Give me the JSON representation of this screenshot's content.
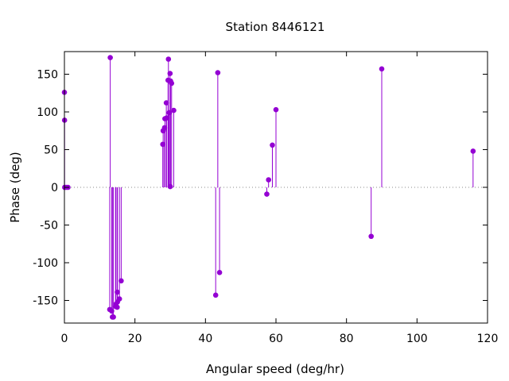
{
  "chart_data": {
    "type": "scatter",
    "style": "impulses with point markers (stem plot)",
    "title": "Station 8446121",
    "xlabel": "Angular speed (deg/hr)",
    "ylabel": "Phase (deg)",
    "xlim": [
      0,
      120
    ],
    "ylim": [
      -180,
      180
    ],
    "xticks": [
      0,
      20,
      40,
      60,
      80,
      100,
      120
    ],
    "yticks": [
      -150,
      -100,
      -50,
      0,
      50,
      100,
      150
    ],
    "zero_line": "dotted",
    "grid": false,
    "legend": "none",
    "color": "#9400d3",
    "series": [
      {
        "points": [
          [
            0.0,
            126
          ],
          [
            0.04,
            89
          ],
          [
            0.08,
            0
          ],
          [
            0.5,
            0
          ],
          [
            1.0,
            0
          ],
          [
            12.85,
            -162
          ],
          [
            13.4,
            -164
          ],
          [
            13.0,
            172
          ],
          [
            13.6,
            -172
          ],
          [
            13.9,
            -172
          ],
          [
            14.5,
            -158
          ],
          [
            14.6,
            -155
          ],
          [
            14.96,
            -159
          ],
          [
            15.0,
            -139
          ],
          [
            15.04,
            -152
          ],
          [
            15.6,
            -148
          ],
          [
            16.1,
            -124
          ],
          [
            27.9,
            57
          ],
          [
            28.0,
            75
          ],
          [
            28.4,
            79
          ],
          [
            28.5,
            91
          ],
          [
            28.9,
            112
          ],
          [
            29.0,
            92
          ],
          [
            29.4,
            142
          ],
          [
            29.5,
            170
          ],
          [
            29.7,
            99
          ],
          [
            29.96,
            151
          ],
          [
            30.0,
            1
          ],
          [
            30.1,
            141
          ],
          [
            30.4,
            138
          ],
          [
            31.0,
            102
          ],
          [
            42.9,
            -143
          ],
          [
            43.5,
            152
          ],
          [
            44.0,
            -113
          ],
          [
            57.4,
            -9
          ],
          [
            57.9,
            10
          ],
          [
            58.98,
            56
          ],
          [
            60.0,
            103
          ],
          [
            87.0,
            -65
          ],
          [
            90.0,
            157
          ],
          [
            115.9,
            48
          ]
        ]
      }
    ]
  }
}
